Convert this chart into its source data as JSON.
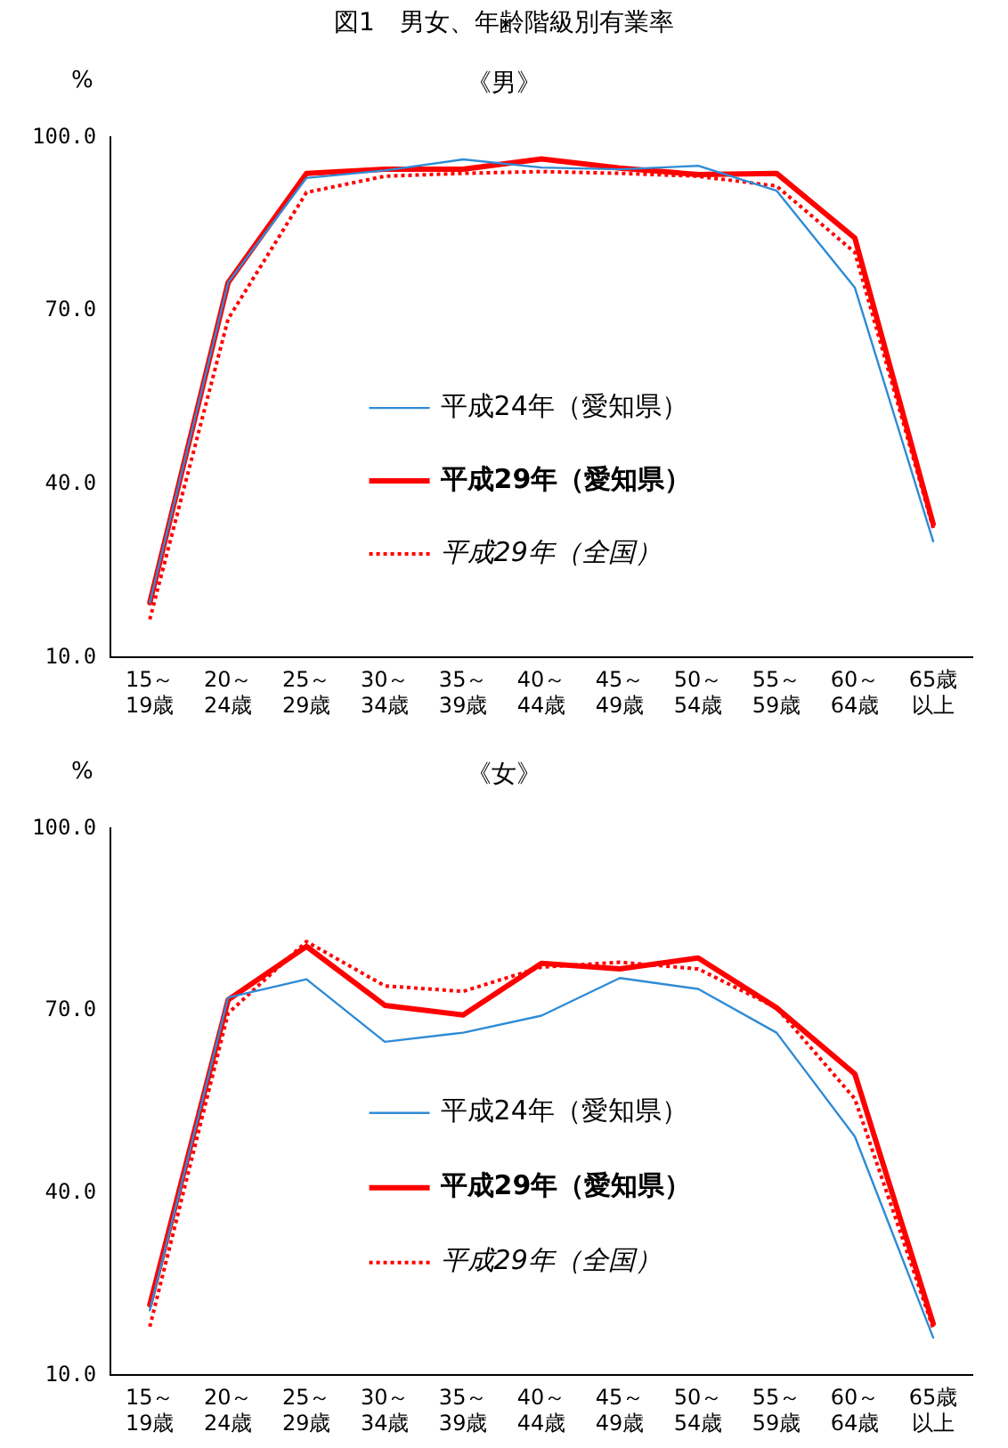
{
  "chart_data": [
    {
      "type": "line",
      "title": "図1　男女、年齢階級別有業率",
      "subtitle": "《男》",
      "ylabel": "%",
      "categories": [
        "15～19歳",
        "20～24歳",
        "25～29歳",
        "30～34歳",
        "35～39歳",
        "40～44歳",
        "45～49歳",
        "50～54歳",
        "55～59歳",
        "60～64歳",
        "65歳以上"
      ],
      "series": [
        {
          "name": "平成24年（愛知県）",
          "color": "#2e8bd6",
          "line_style": "solid",
          "values": [
            19.5,
            74.9,
            93.0,
            94.3,
            96.2,
            94.8,
            94.5,
            95.1,
            90.8,
            74.0,
            30.1
          ]
        },
        {
          "name": "平成29年（愛知県）",
          "color": "#ff0000",
          "line_style": "solid",
          "values": [
            19.5,
            74.9,
            93.8,
            94.5,
            94.5,
            96.3,
            94.7,
            93.6,
            93.8,
            82.6,
            33.1
          ]
        },
        {
          "name": "平成29年（全国）",
          "color": "#ff0000",
          "line_style": "dotted",
          "values": [
            16.6,
            68.6,
            90.5,
            93.3,
            93.8,
            94.1,
            93.8,
            93.3,
            91.6,
            80.1,
            32.4
          ]
        }
      ],
      "ylim": [
        10,
        100
      ],
      "yticks": [
        {
          "value": 10,
          "label": "10.0"
        },
        {
          "value": 40,
          "label": "40.0"
        },
        {
          "value": 70,
          "label": "70.0"
        },
        {
          "value": 100,
          "label": "100.0"
        }
      ],
      "grid": false,
      "legend": "center",
      "marker": "none"
    },
    {
      "type": "line",
      "subtitle": "《女》",
      "ylabel": "%",
      "categories": [
        "15～19歳",
        "20～24歳",
        "25～29歳",
        "30～34歳",
        "35～39歳",
        "40～44歳",
        "45～49歳",
        "50～54歳",
        "55～59歳",
        "60～64歳",
        "65歳以上"
      ],
      "series": [
        {
          "name": "平成24年（愛知県）",
          "color": "#2e8bd6",
          "line_style": "solid",
          "values": [
            20.7,
            72.2,
            75.2,
            64.9,
            66.4,
            69.2,
            75.4,
            73.6,
            66.4,
            49.3,
            16.2
          ]
        },
        {
          "name": "平成29年（愛知県）",
          "color": "#ff0000",
          "line_style": "solid",
          "values": [
            21.6,
            71.8,
            80.6,
            70.9,
            69.3,
            77.8,
            76.9,
            78.7,
            70.5,
            59.6,
            18.5
          ]
        },
        {
          "name": "平成29年（全国）",
          "color": "#ff0000",
          "line_style": "dotted",
          "values": [
            18.0,
            69.6,
            81.4,
            74.1,
            73.2,
            77.2,
            78.0,
            76.9,
            70.5,
            55.5,
            17.7
          ]
        }
      ],
      "ylim": [
        10,
        100
      ],
      "yticks": [
        {
          "value": 10,
          "label": "10.0"
        },
        {
          "value": 40,
          "label": "40.0"
        },
        {
          "value": 70,
          "label": "70.0"
        },
        {
          "value": 100,
          "label": "100.0"
        }
      ],
      "grid": false,
      "legend": "center",
      "marker": "none"
    }
  ]
}
